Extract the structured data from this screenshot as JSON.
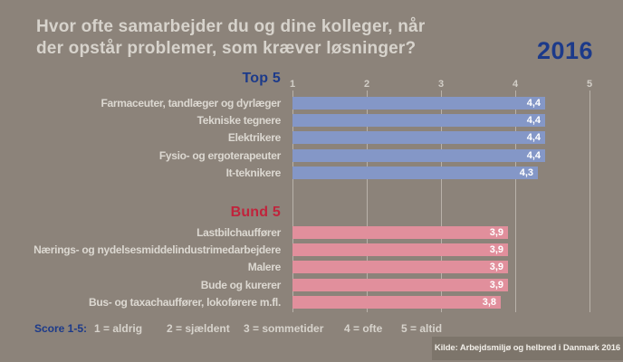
{
  "title": {
    "line1": "Hvor ofte samarbejder du og dine kolleger, når",
    "line2": "der opstår problemer, som kræver løsninger?"
  },
  "year_badge": "2016",
  "chart_data": {
    "type": "bar",
    "orientation": "horizontal",
    "x_range": [
      1,
      5
    ],
    "axis_ticks": [
      "1",
      "2",
      "3",
      "4",
      "5"
    ],
    "grid": true,
    "value_decimal_style": "comma",
    "groups": [
      {
        "name": "Top 5",
        "bar_color": "#8497c7",
        "heading_color": "#1c3a8a",
        "items": [
          {
            "label": "Farmaceuter, tandlæger og dyrlæger",
            "value": 4.4,
            "value_label": "4,4"
          },
          {
            "label": "Tekniske tegnere",
            "value": 4.4,
            "value_label": "4,4"
          },
          {
            "label": "Elektrikere",
            "value": 4.4,
            "value_label": "4,4"
          },
          {
            "label": "Fysio- og ergoterapeuter",
            "value": 4.4,
            "value_label": "4,4"
          },
          {
            "label": "It-teknikere",
            "value": 4.3,
            "value_label": "4,3"
          }
        ]
      },
      {
        "name": "Bund 5",
        "bar_color": "#e18f9c",
        "heading_color": "#c0243c",
        "items": [
          {
            "label": "Lastbilchauffører",
            "value": 3.9,
            "value_label": "3,9"
          },
          {
            "label": "Nærings- og nydelsesmiddelindustrimedarbejdere",
            "value": 3.9,
            "value_label": "3,9"
          },
          {
            "label": "Malere",
            "value": 3.9,
            "value_label": "3,9"
          },
          {
            "label": "Bude og kurerer",
            "value": 3.9,
            "value_label": "3,9"
          },
          {
            "label": "Bus- og taxachauffører, lokoførere m.fl.",
            "value": 3.8,
            "value_label": "3,8"
          }
        ]
      }
    ]
  },
  "score_legend": {
    "label": "Score 1-5:",
    "items": [
      "1 = aldrig",
      "2 = sjældent",
      "3 = sommetider",
      "4 = ofte",
      "5 = altid"
    ]
  },
  "source": "Kilde: Arbejdsmiljø og helbred i Danmark 2016",
  "colors": {
    "background": "#8c837a",
    "title_text": "#d7d3cc",
    "navy": "#1c3a8a",
    "red": "#c0243c",
    "top_bar": "#8497c7",
    "bund_bar": "#e18f9c",
    "value_text": "#ffffff",
    "gridline": "rgba(240,236,228,0.45)",
    "source_strip": "#7d756b"
  }
}
